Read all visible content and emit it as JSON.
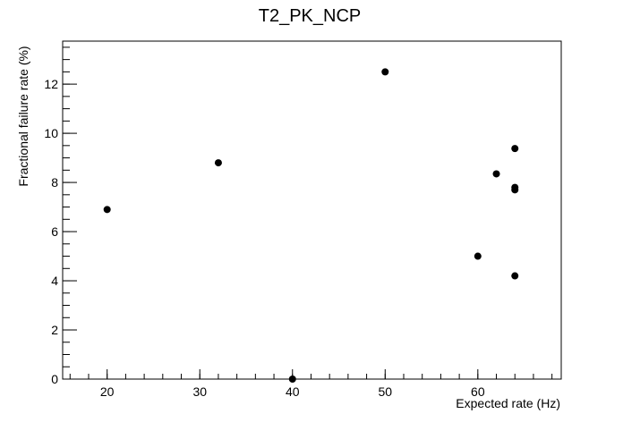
{
  "chart_data": {
    "type": "scatter",
    "title": "T2_PK_NCP",
    "x_label": "Expected rate (Hz)",
    "y_label": "Fractional failure rate (%)",
    "x": [
      20,
      32,
      40,
      50,
      60,
      62,
      64,
      64,
      64,
      64
    ],
    "values": [
      6.9,
      8.8,
      0,
      12.5,
      5.0,
      8.35,
      9.38,
      7.8,
      7.7,
      4.2
    ],
    "color": "#000000",
    "xlim": [
      15.2,
      69
    ],
    "xticks": [
      20,
      30,
      40,
      50,
      60
    ],
    "ylim": [
      0,
      13.75
    ],
    "yticks": [
      0,
      2,
      4,
      6,
      8,
      10,
      12
    ]
  }
}
